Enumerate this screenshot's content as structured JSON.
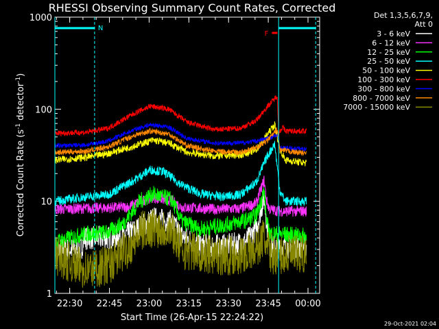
{
  "chart_data": {
    "type": "line",
    "title": "RHESSI Observing Summary Count Rates, Corrected",
    "xlabel": "Start Time (26-Apr-15 22:24:22)",
    "ylabel_main": "Corrected Count Rate (s",
    "ylabel_sup1": "-1",
    "ylabel_mid": " detector",
    "ylabel_sup2": "-1",
    "ylabel_end": ")",
    "y_scale": "log",
    "ylim": [
      1,
      1000
    ],
    "xlim_minutes": [
      0,
      100
    ],
    "x_ticks": [
      {
        "m": 5.6,
        "label": "22:30"
      },
      {
        "m": 20.6,
        "label": "22:45"
      },
      {
        "m": 35.6,
        "label": "23:00"
      },
      {
        "m": 50.6,
        "label": "23:15"
      },
      {
        "m": 65.6,
        "label": "23:30"
      },
      {
        "m": 80.6,
        "label": "23:45"
      },
      {
        "m": 95.6,
        "label": "00:00"
      }
    ],
    "y_ticks": [
      {
        "v": 1,
        "label": "1"
      },
      {
        "v": 10,
        "label": "10"
      },
      {
        "v": 100,
        "label": "100"
      },
      {
        "v": 1000,
        "label": "1000"
      }
    ],
    "legend_header1": "Det 1,3,5,6,7,9,",
    "legend_header2": "Att 0",
    "legend_position": "top-right",
    "series": [
      {
        "name": "3 - 6 keV",
        "color": "#ffffff",
        "points": [
          [
            0,
            3
          ],
          [
            10,
            3
          ],
          [
            11,
            4
          ],
          [
            20,
            4
          ],
          [
            26,
            4.2
          ],
          [
            32,
            5.2
          ],
          [
            37,
            6.5
          ],
          [
            44,
            6
          ],
          [
            48,
            4.2
          ],
          [
            55,
            3.3
          ],
          [
            65,
            3.3
          ],
          [
            72,
            3.6
          ],
          [
            76,
            5
          ],
          [
            79,
            11
          ],
          [
            80,
            6
          ],
          [
            81,
            3.3
          ],
          [
            83,
            3.2
          ],
          [
            95,
            3.2
          ]
        ],
        "noise": 0.13
      },
      {
        "name": "6 - 12 keV",
        "color": "#ff33ff",
        "points": [
          [
            0,
            8.2
          ],
          [
            20,
            8.5
          ],
          [
            28,
            8.7
          ],
          [
            33,
            10.2
          ],
          [
            37,
            11
          ],
          [
            44,
            10.2
          ],
          [
            48,
            8.6
          ],
          [
            60,
            8.2
          ],
          [
            70,
            8.3
          ],
          [
            76,
            9.5
          ],
          [
            79,
            17
          ],
          [
            80,
            10
          ],
          [
            81,
            8.2
          ],
          [
            85,
            7.8
          ],
          [
            95,
            7.8
          ]
        ],
        "noise": 0.06
      },
      {
        "name": "12 - 25 keV",
        "color": "#00ff00",
        "points": [
          [
            0,
            3.6
          ],
          [
            11,
            4.4
          ],
          [
            20,
            4.6
          ],
          [
            26,
            5.8
          ],
          [
            32,
            10
          ],
          [
            37,
            12
          ],
          [
            44,
            10.5
          ],
          [
            48,
            6
          ],
          [
            55,
            5
          ],
          [
            65,
            5.6
          ],
          [
            72,
            6.2
          ],
          [
            76,
            7
          ],
          [
            79,
            13
          ],
          [
            80,
            6
          ],
          [
            81,
            4.5
          ],
          [
            95,
            4.2
          ]
        ],
        "noise": 0.09
      },
      {
        "name": "25 - 50 keV",
        "color": "#00ffff",
        "points": [
          [
            0,
            10
          ],
          [
            10,
            11
          ],
          [
            20,
            11.8
          ],
          [
            30,
            17
          ],
          [
            36,
            22
          ],
          [
            41,
            21
          ],
          [
            48,
            15
          ],
          [
            55,
            12
          ],
          [
            63,
            11.2
          ],
          [
            70,
            11.8
          ],
          [
            76,
            16
          ],
          [
            80,
            30
          ],
          [
            83,
            42
          ],
          [
            85,
            13
          ],
          [
            87,
            10
          ],
          [
            95,
            10
          ]
        ],
        "noise": 0.05
      },
      {
        "name": "50 - 100 keV",
        "color": "#ffff00",
        "points": [
          [
            0,
            28
          ],
          [
            12,
            30
          ],
          [
            20,
            33
          ],
          [
            30,
            40
          ],
          [
            37,
            46
          ],
          [
            43,
            43
          ],
          [
            50,
            34
          ],
          [
            60,
            31
          ],
          [
            70,
            32
          ],
          [
            76,
            36
          ],
          [
            80,
            52
          ],
          [
            83,
            68
          ],
          [
            85,
            37
          ],
          [
            87,
            28
          ],
          [
            95,
            26
          ]
        ],
        "noise": 0.04
      },
      {
        "name": "100 - 300 keV",
        "color": "#ff0000",
        "points": [
          [
            0,
            55
          ],
          [
            12,
            56
          ],
          [
            20,
            62
          ],
          [
            30,
            90
          ],
          [
            36,
            108
          ],
          [
            43,
            100
          ],
          [
            50,
            72
          ],
          [
            60,
            60
          ],
          [
            70,
            62
          ],
          [
            76,
            75
          ],
          [
            80,
            105
          ],
          [
            84,
            140
          ],
          [
            84.5,
            55
          ],
          [
            86,
            64
          ],
          [
            87,
            58
          ],
          [
            95,
            58
          ]
        ],
        "noise": 0.03
      },
      {
        "name": "300 - 800 keV",
        "color": "#0000ff",
        "points": [
          [
            0,
            40
          ],
          [
            12,
            41
          ],
          [
            20,
            45
          ],
          [
            30,
            60
          ],
          [
            36,
            68
          ],
          [
            43,
            64
          ],
          [
            50,
            48
          ],
          [
            60,
            43
          ],
          [
            70,
            43
          ],
          [
            76,
            45
          ],
          [
            80,
            48
          ],
          [
            84,
            52
          ],
          [
            85,
            38
          ],
          [
            95,
            37
          ]
        ],
        "noise": 0.025
      },
      {
        "name": "800 - 7000 keV",
        "color": "#ff8800",
        "points": [
          [
            0,
            34
          ],
          [
            12,
            35
          ],
          [
            20,
            39
          ],
          [
            30,
            52
          ],
          [
            36,
            58
          ],
          [
            43,
            54
          ],
          [
            50,
            40
          ],
          [
            60,
            35
          ],
          [
            70,
            34
          ],
          [
            76,
            38
          ],
          [
            80,
            45
          ],
          [
            84,
            60
          ],
          [
            85,
            36
          ],
          [
            95,
            33
          ]
        ],
        "noise": 0.03
      },
      {
        "name": "7000 - 15000 keV",
        "color": "#888800",
        "points": [
          [
            0,
            2.6
          ],
          [
            12,
            1.8
          ],
          [
            20,
            2
          ],
          [
            28,
            3.2
          ],
          [
            33,
            4.8
          ],
          [
            37,
            5.2
          ],
          [
            44,
            5
          ],
          [
            48,
            3
          ],
          [
            60,
            2.6
          ],
          [
            70,
            2.6
          ],
          [
            76,
            3
          ],
          [
            79,
            4.2
          ],
          [
            80,
            3
          ],
          [
            83,
            2.6
          ],
          [
            95,
            2.6
          ]
        ],
        "noise": 0.22
      }
    ],
    "annotations": [
      {
        "label": "N",
        "color": "#00ffff",
        "kind": "night-left"
      },
      {
        "label": "F",
        "color": "#ff0000",
        "kind": "flare"
      }
    ]
  },
  "footer_date": "29-Oct-2021 02:04"
}
